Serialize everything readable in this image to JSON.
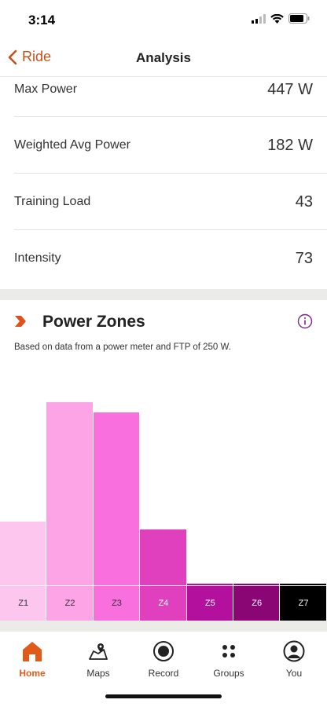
{
  "status": {
    "time": "3:14"
  },
  "nav": {
    "back_label": "Ride",
    "title": "Analysis"
  },
  "stats": [
    {
      "label": "Max Power",
      "value": "447 W"
    },
    {
      "label": "Weighted Avg Power",
      "value": "182 W"
    },
    {
      "label": "Training Load",
      "value": "43"
    },
    {
      "label": "Intensity",
      "value": "73"
    }
  ],
  "power_zones": {
    "title": "Power Zones",
    "subtitle": "Based on data from a power meter and FTP of 250 W."
  },
  "chart_data": {
    "type": "bar",
    "categories": [
      "Z1",
      "Z2",
      "Z3",
      "Z4",
      "Z5",
      "Z6",
      "Z7"
    ],
    "values": [
      39,
      86,
      82,
      36,
      9,
      4,
      1
    ],
    "colors": [
      "#fcc6ee",
      "#fca4e6",
      "#f86fdd",
      "#e040be",
      "#b3119d",
      "#8a0674",
      "#000000"
    ],
    "label_colors": [
      "#333333",
      "#333333",
      "#333333",
      "#ffffff",
      "#ffffff",
      "#ffffff",
      "#ffffff"
    ],
    "ylim": [
      0,
      100
    ]
  },
  "tabs": [
    {
      "label": "Home",
      "icon": "home-icon",
      "active": true
    },
    {
      "label": "Maps",
      "icon": "map-icon",
      "active": false
    },
    {
      "label": "Record",
      "icon": "record-icon",
      "active": false
    },
    {
      "label": "Groups",
      "icon": "groups-icon",
      "active": false
    },
    {
      "label": "You",
      "icon": "profile-icon",
      "active": false
    }
  ],
  "colors": {
    "accent": "#c4511a",
    "active_tab": "#e05a1a",
    "info": "#7b2a8c"
  }
}
